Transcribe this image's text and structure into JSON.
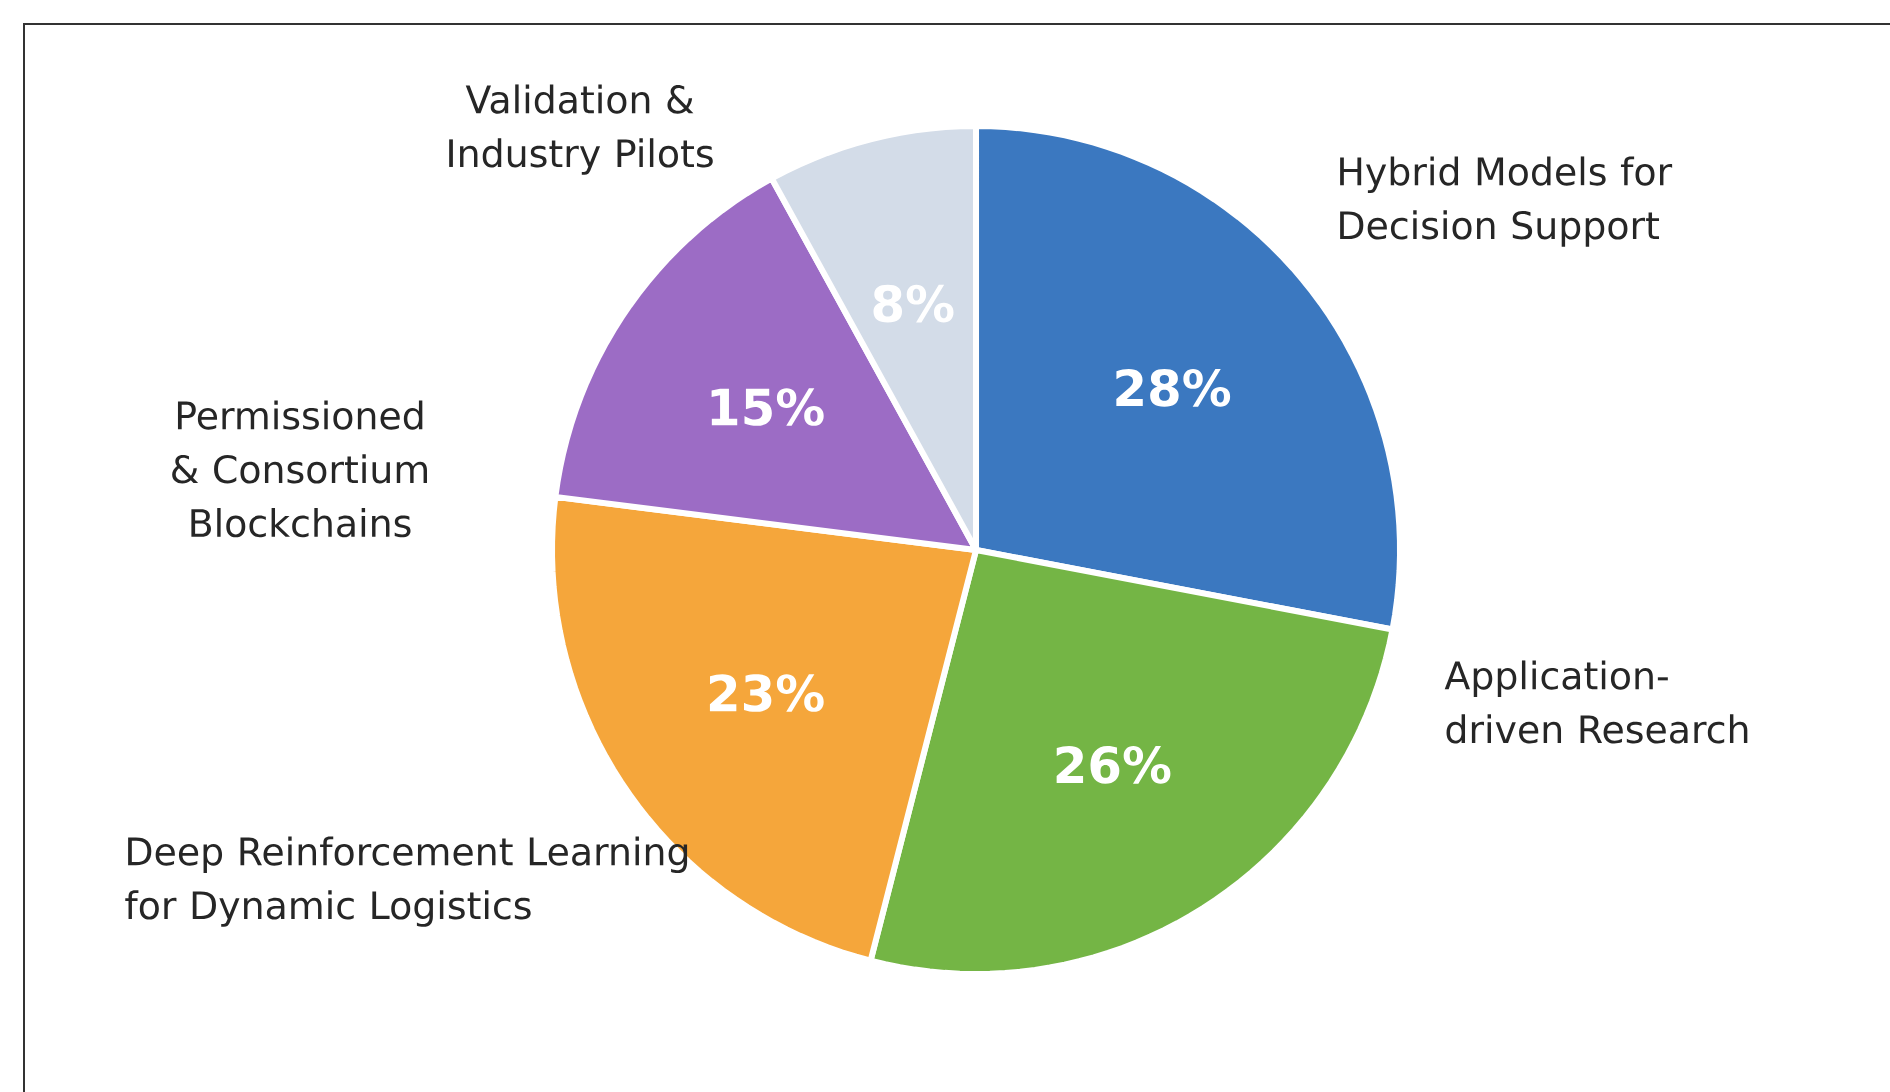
{
  "chart_data": {
    "type": "pie",
    "categories": [
      "Hybrid Models for Decision Support",
      "Application-driven Research",
      "Deep Reinforcement Learning for Dynamic Logistics",
      "Permissioned & Consortium Blockchains",
      "Validation & Industry Pilots"
    ],
    "values": [
      28,
      26,
      23,
      15,
      8
    ],
    "value_labels": [
      "28%",
      "26%",
      "23%",
      "15%",
      "8%"
    ],
    "colors": [
      "#3b78c0",
      "#74b545",
      "#f5a63b",
      "#9c6cc5",
      "#d3dce8"
    ]
  }
}
